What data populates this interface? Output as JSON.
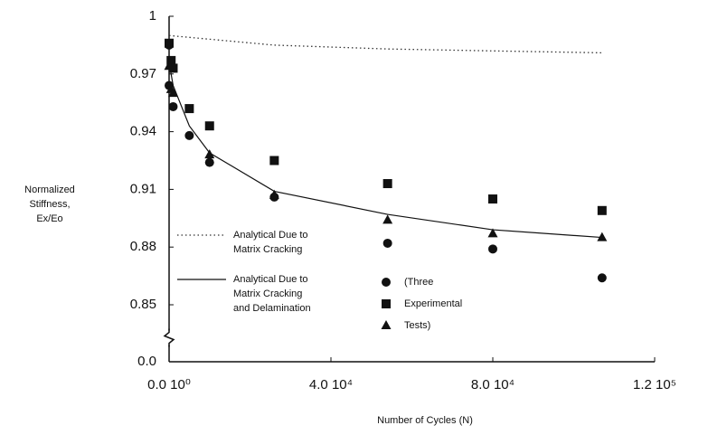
{
  "chart_data": {
    "type": "line",
    "x_label": "Number of Cycles (N)",
    "y_label": [
      "Normalized",
      "Stiffness,",
      "Ex/Eo"
    ],
    "xlim": [
      0,
      120000
    ],
    "xticks": [
      {
        "value": 0,
        "label": "0.0 10⁰"
      },
      {
        "value": 40000,
        "label": "4.0 10⁴"
      },
      {
        "value": 80000,
        "label": "8.0 10⁴"
      },
      {
        "value": 120000,
        "label": "1.2 10⁵"
      }
    ],
    "ylim": [
      0,
      1
    ],
    "y_break": [
      0,
      0.85
    ],
    "yticks": [
      {
        "value": 0,
        "label": "0.0"
      },
      0.85,
      0.88,
      0.91,
      0.94,
      0.97,
      1
    ],
    "series": [
      {
        "name": "Analytical Due to\nMatrix Cracking",
        "line": "dotted",
        "color": "#333",
        "x": [
          0,
          26000,
          54000,
          80000,
          107000
        ],
        "values": [
          0.99,
          0.985,
          0.983,
          0.982,
          0.981
        ]
      },
      {
        "name": "Analytical Due to\nMatrix Cracking\nand Delamination",
        "line": "solid",
        "color": "#111",
        "x": [
          0,
          1000,
          5000,
          10000,
          26000,
          54000,
          80000,
          107000
        ],
        "values": [
          0.976,
          0.964,
          0.943,
          0.929,
          0.909,
          0.897,
          0.889,
          0.885
        ]
      },
      {
        "name": "(Three",
        "marker": "circle",
        "color": "#111",
        "x": [
          0,
          0,
          1000,
          5000,
          10000,
          26000,
          54000,
          80000,
          107000
        ],
        "values": [
          0.985,
          0.964,
          0.953,
          0.938,
          0.924,
          0.906,
          0.882,
          0.879,
          0.864
        ]
      },
      {
        "name": "Experimental",
        "marker": "square",
        "color": "#111",
        "x": [
          0,
          500,
          1000,
          5000,
          10000,
          26000,
          54000,
          80000,
          107000
        ],
        "values": [
          0.986,
          0.977,
          0.973,
          0.952,
          0.943,
          0.925,
          0.913,
          0.905,
          0.899
        ]
      },
      {
        "name": "Tests)",
        "marker": "triangle",
        "color": "#111",
        "x": [
          0,
          500,
          1000,
          10000,
          26000,
          54000,
          80000,
          107000
        ],
        "values": [
          0.974,
          0.962,
          0.96,
          0.928,
          0.907,
          0.894,
          0.887,
          0.885
        ]
      }
    ]
  }
}
